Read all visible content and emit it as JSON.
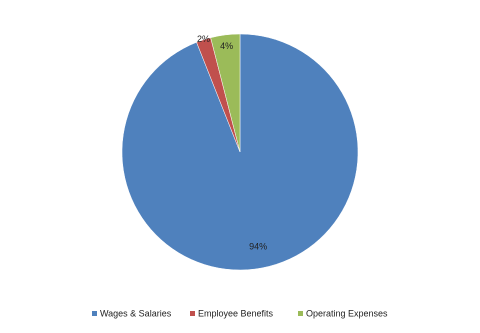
{
  "chart_data": {
    "type": "pie",
    "categories": [
      "Wages & Salaries",
      "Employee Benefits",
      "Operating Expenses"
    ],
    "values": [
      94,
      2,
      4
    ],
    "value_labels": [
      "94%",
      "2%",
      "4%"
    ],
    "colors": [
      "#4f81bd",
      "#c0504d",
      "#9bbb59"
    ],
    "legend": "bottom"
  }
}
